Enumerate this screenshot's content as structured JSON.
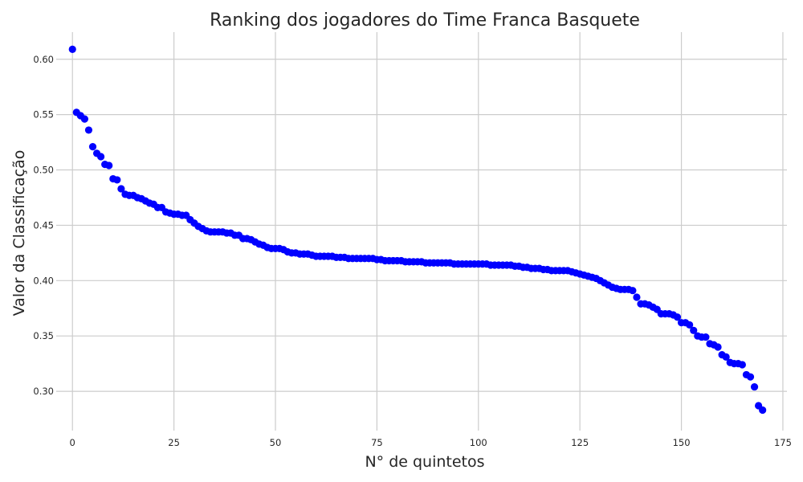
{
  "chart_data": {
    "type": "scatter",
    "title": "Ranking dos jogadores do Time Franca Basquete",
    "xlabel": "N° de quintetos",
    "ylabel": "Valor da Classificação",
    "xlim": [
      -4,
      176
    ],
    "ylim": [
      0.2645,
      0.6245
    ],
    "xticks": [
      0,
      25,
      50,
      75,
      100,
      125,
      150,
      175
    ],
    "yticks": [
      0.3,
      0.35,
      0.4,
      0.45,
      0.5,
      0.55,
      0.6
    ],
    "grid": true,
    "color": "#0000ff",
    "x_start": 0,
    "y": [
      0.609,
      0.552,
      0.549,
      0.546,
      0.536,
      0.521,
      0.515,
      0.512,
      0.505,
      0.504,
      0.492,
      0.491,
      0.483,
      0.478,
      0.477,
      0.477,
      0.475,
      0.474,
      0.472,
      0.47,
      0.469,
      0.466,
      0.466,
      0.462,
      0.461,
      0.46,
      0.46,
      0.459,
      0.459,
      0.455,
      0.452,
      0.449,
      0.447,
      0.445,
      0.444,
      0.444,
      0.444,
      0.444,
      0.443,
      0.443,
      0.441,
      0.441,
      0.438,
      0.438,
      0.437,
      0.435,
      0.433,
      0.432,
      0.43,
      0.429,
      0.429,
      0.429,
      0.428,
      0.426,
      0.425,
      0.425,
      0.424,
      0.424,
      0.424,
      0.423,
      0.422,
      0.422,
      0.422,
      0.422,
      0.422,
      0.421,
      0.421,
      0.421,
      0.42,
      0.42,
      0.42,
      0.42,
      0.42,
      0.42,
      0.42,
      0.419,
      0.419,
      0.418,
      0.418,
      0.418,
      0.418,
      0.418,
      0.417,
      0.417,
      0.417,
      0.417,
      0.417,
      0.416,
      0.416,
      0.416,
      0.416,
      0.416,
      0.416,
      0.416,
      0.415,
      0.415,
      0.415,
      0.415,
      0.415,
      0.415,
      0.415,
      0.415,
      0.415,
      0.414,
      0.414,
      0.414,
      0.414,
      0.414,
      0.414,
      0.413,
      0.413,
      0.412,
      0.412,
      0.411,
      0.411,
      0.411,
      0.41,
      0.41,
      0.409,
      0.409,
      0.409,
      0.409,
      0.409,
      0.408,
      0.407,
      0.406,
      0.405,
      0.404,
      0.403,
      0.402,
      0.4,
      0.398,
      0.396,
      0.394,
      0.393,
      0.392,
      0.392,
      0.392,
      0.391,
      0.385,
      0.379,
      0.379,
      0.378,
      0.376,
      0.374,
      0.37,
      0.37,
      0.37,
      0.369,
      0.367,
      0.362,
      0.362,
      0.36,
      0.355,
      0.35,
      0.349,
      0.349,
      0.343,
      0.342,
      0.34,
      0.333,
      0.331,
      0.326,
      0.325,
      0.325,
      0.324,
      0.315,
      0.313,
      0.304,
      0.287,
      0.283
    ]
  }
}
